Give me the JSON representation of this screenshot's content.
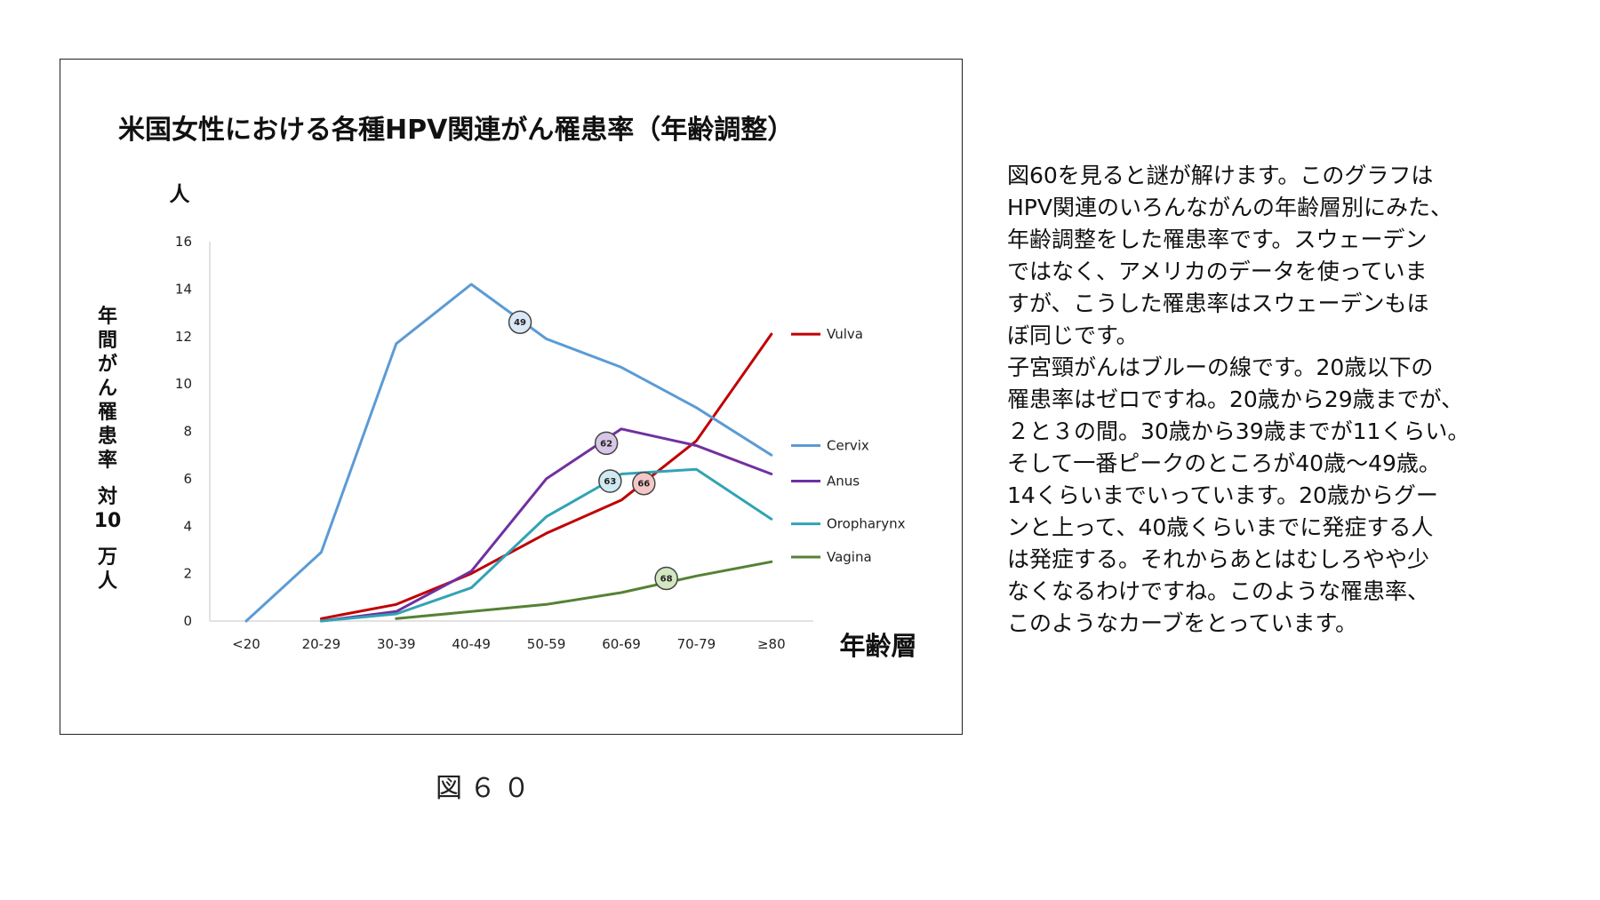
{
  "chart_data": {
    "type": "line",
    "title": "米国女性における各種HPV関連がん罹患率（年齢調整）",
    "unit_top": "人",
    "ylabel_lines": [
      "年",
      "間",
      "が",
      "ん",
      "罹",
      "患",
      "率",
      "",
      "対",
      "10",
      "",
      "万",
      "人"
    ],
    "xlabel": "年齢層",
    "categories": [
      "<20",
      "20-29",
      "30-39",
      "40-49",
      "50-59",
      "60-69",
      "70-79",
      "≥80"
    ],
    "ylim": [
      0,
      16
    ],
    "yticks": [
      0,
      2,
      4,
      6,
      8,
      10,
      12,
      14,
      16
    ],
    "grid": false,
    "legend_position": "right",
    "series": [
      {
        "name": "Vulva",
        "color": "#c00000",
        "values": [
          null,
          0.1,
          0.7,
          2.0,
          3.7,
          5.1,
          7.6,
          12.1
        ],
        "label_y": 12.1
      },
      {
        "name": "Cervix",
        "color": "#5b9bd5",
        "values": [
          0,
          2.9,
          11.7,
          14.2,
          11.9,
          10.7,
          9.0,
          7.0
        ],
        "label_y": 7.4
      },
      {
        "name": "Anus",
        "color": "#7030a0",
        "values": [
          null,
          0.0,
          0.4,
          2.1,
          6.0,
          8.1,
          7.4,
          6.2
        ],
        "label_y": 5.9
      },
      {
        "name": "Oropharynx",
        "color": "#31a3b5",
        "values": [
          null,
          0.0,
          0.3,
          1.4,
          4.4,
          6.2,
          6.4,
          4.3
        ],
        "label_y": 4.1
      },
      {
        "name": "Vagina",
        "color": "#548235",
        "values": [
          null,
          null,
          0.1,
          0.4,
          0.7,
          1.2,
          1.9,
          2.5
        ],
        "label_y": 2.7
      }
    ],
    "markers": [
      {
        "label": "49",
        "x_index": 3.65,
        "y": 12.6,
        "fill": "#dbe9f7"
      },
      {
        "label": "62",
        "x_index": 4.8,
        "y": 7.5,
        "fill": "#d7c6e6"
      },
      {
        "label": "63",
        "x_index": 4.85,
        "y": 5.9,
        "fill": "#cfeaf0"
      },
      {
        "label": "66",
        "x_index": 5.3,
        "y": 5.8,
        "fill": "#f4c7c7"
      },
      {
        "label": "68",
        "x_index": 5.6,
        "y": 1.8,
        "fill": "#d3e6c2"
      }
    ]
  },
  "caption": "図６０",
  "description_lines": [
    "図60を見ると謎が解けます。このグラフは",
    "HPV関連のいろんながんの年齢層別にみた、",
    "年齢調整をした罹患率です。スウェーデン",
    "ではなく、アメリカのデータを使っていま",
    "すが、こうした罹患率はスウェーデンもほ",
    "ぼ同じです。",
    "子宮頸がんはブルーの線です。20歳以下の",
    "罹患率はゼロですね。20歳から29歳までが、",
    "２と３の間。30歳から39歳までが11くらい。",
    "そして一番ピークのところが40歳〜49歳。",
    "14くらいまでいっています。20歳からグー",
    "ンと上って、40歳くらいまでに発症する人",
    "は発症する。それからあとはむしろやや少",
    "なくなるわけですね。このような罹患率、",
    "このようなカーブをとっています。"
  ]
}
